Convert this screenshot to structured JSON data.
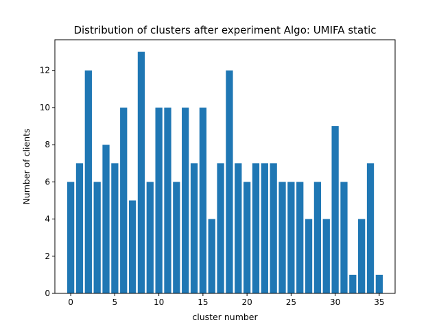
{
  "chart_data": {
    "type": "bar",
    "title": "Distribution of clusters after experiment Algo: UMIFA static",
    "xlabel": "cluster number",
    "ylabel": "Number of clients",
    "x": [
      0,
      1,
      2,
      3,
      4,
      5,
      6,
      7,
      8,
      9,
      10,
      11,
      12,
      13,
      14,
      15,
      16,
      17,
      18,
      19,
      20,
      21,
      22,
      23,
      24,
      25,
      26,
      27,
      28,
      29,
      30,
      31,
      32,
      33,
      34,
      35
    ],
    "values": [
      6,
      7,
      12,
      6,
      8,
      7,
      10,
      5,
      13,
      6,
      10,
      10,
      6,
      10,
      7,
      10,
      4,
      7,
      12,
      7,
      6,
      7,
      7,
      7,
      6,
      6,
      6,
      4,
      6,
      4,
      9,
      6,
      1,
      4,
      7,
      1
    ],
    "xlim": [
      -1.8,
      36.8
    ],
    "ylim": [
      0,
      13.65
    ],
    "xticks": [
      0,
      5,
      10,
      15,
      20,
      25,
      30,
      35
    ],
    "yticks": [
      0,
      2,
      4,
      6,
      8,
      10,
      12
    ],
    "bar_color": "#1f77b4",
    "grid": false,
    "legend": false
  }
}
